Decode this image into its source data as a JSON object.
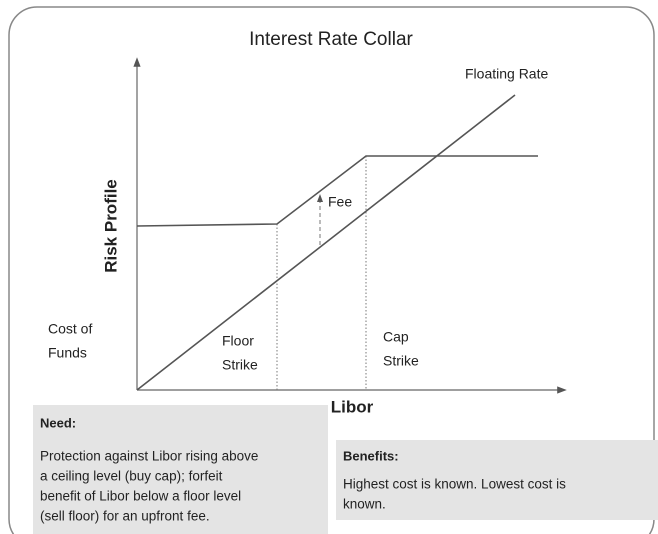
{
  "title": "Interest Rate Collar",
  "y_axis_label": "Risk Profile",
  "x_axis_label": "Libor",
  "labels": {
    "floating_rate": "Floating Rate",
    "fee": "Fee",
    "cost_of_funds": [
      "Cost of",
      "Funds"
    ],
    "floor_strike": [
      "Floor",
      "Strike"
    ],
    "cap_strike": [
      "Cap",
      "Strike"
    ]
  },
  "need": {
    "heading": "Need:",
    "lines": [
      "Protection against Libor rising above",
      "a ceiling level (buy cap); forfeit",
      "benefit of Libor below a floor level",
      "(sell floor) for an upfront fee."
    ]
  },
  "benefits": {
    "heading": "Benefits:",
    "lines": [
      "Highest cost is known. Lowest cost is",
      "known."
    ]
  }
}
